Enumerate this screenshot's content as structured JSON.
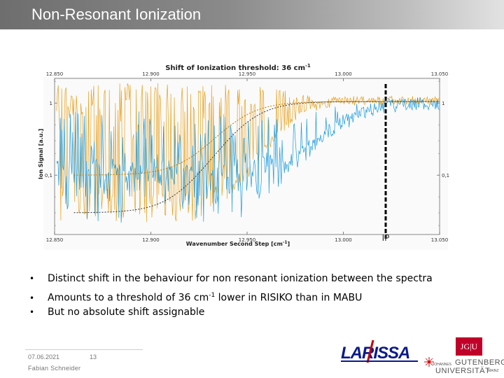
{
  "slide": {
    "title": "Non-Resonant Ionization"
  },
  "bullets": [
    {
      "text": "Distinct shift in the behaviour for non resonant ionization between the spectra"
    },
    {
      "text_pre": "Amounts to a threshold of 36 cm",
      "sup": "-1",
      "text_post": " lower in RISIKO than in MABU"
    },
    {
      "text": "But no absolute shift assignable"
    }
  ],
  "footer": {
    "date": "07.06.2021",
    "page": "13",
    "author": "Fabian Schneider"
  },
  "logos": {
    "larissa": "LARISSA",
    "jgu_box": "JG|U",
    "jgu_small": "JOHANNES",
    "jgu_line1": "GUTENBERG",
    "jgu_line2": "UNIVERSITÄT",
    "jgu_mainz": "MAINZ"
  },
  "colors": {
    "title_bg": "#7a7a7a",
    "series_orange": "#e8a01c",
    "series_blue": "#1a9be0",
    "jgu_red": "#c1002a"
  },
  "chart_data": {
    "type": "line",
    "title": "Shift of Ionization threshold: 36 cm",
    "title_sup": "-1",
    "xlabel": "Wavenumber Second Step [cm",
    "xlabel_sup": "-1",
    "xlabel_end": "]",
    "ylabel": "Ion Signal [a.u.]",
    "xlim": [
      12850,
      13050
    ],
    "x_ticks": [
      12850,
      12900,
      12950,
      13000,
      13050
    ],
    "x_tick_labels": [
      "12.850",
      "12.900",
      "12.950",
      "13.000",
      "13.050"
    ],
    "y_scale": "log",
    "y_ticks": [
      0.1,
      1
    ],
    "y_tick_labels": [
      "0,1",
      "1"
    ],
    "ip_marker_x": 13022,
    "ip_label": "IP",
    "series": [
      {
        "name": "RISIKO (orange, noisy)",
        "color": "#e8a01c",
        "threshold_x": 12985,
        "style": "solid"
      },
      {
        "name": "MABU (blue, noisy)",
        "color": "#1a9be0",
        "threshold_x": 13021,
        "style": "solid"
      },
      {
        "name": "RISIKO fit",
        "color": "#e8a01c",
        "threshold_x": 12985,
        "style": "dotted"
      },
      {
        "name": "MABU fit",
        "color": "#333333",
        "threshold_x": 12975,
        "style": "dotted"
      }
    ]
  }
}
